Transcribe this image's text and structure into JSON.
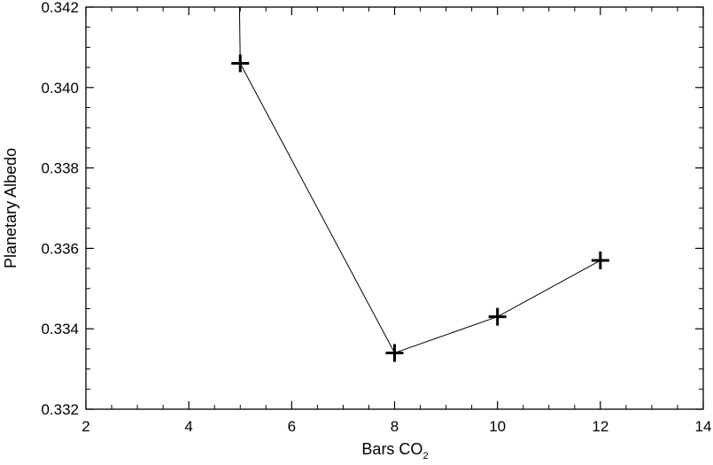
{
  "chart_data": {
    "type": "line",
    "title": "",
    "xlabel": "Bars CO",
    "xlabel_subscript": "2",
    "ylabel": "Planetary Albedo",
    "xlim": [
      2,
      14
    ],
    "ylim": [
      0.332,
      0.342
    ],
    "x_ticks": [
      "2",
      "4",
      "6",
      "8",
      "10",
      "12",
      "14"
    ],
    "y_ticks": [
      "0.332",
      "0.334",
      "0.336",
      "0.338",
      "0.340",
      "0.342"
    ],
    "grid": false,
    "legend": "none",
    "marker": "plus",
    "line_color": "#000000",
    "series": [
      {
        "x": [
          4.98,
          5.0,
          8.0,
          10.0,
          12.0
        ],
        "y": [
          0.3425,
          0.3406,
          0.3334,
          0.3343,
          0.3357
        ],
        "marker_points": [
          1,
          2,
          3,
          4
        ]
      }
    ]
  }
}
